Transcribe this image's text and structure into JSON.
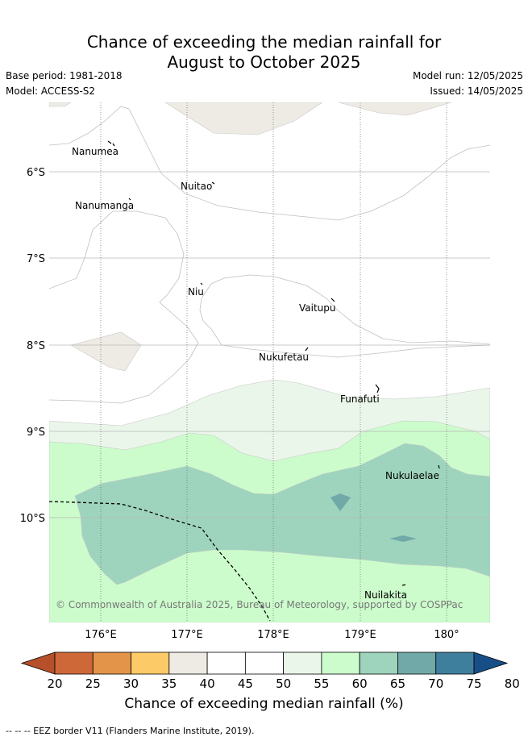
{
  "title_line1": "Chance of exceeding the median rainfall for",
  "title_line2": "August to October 2025",
  "base_period": "Base period: 1981-2018",
  "model": "Model: ACCESS-S2",
  "model_run": "Model run: 12/05/2025",
  "issued": "Issued: 14/05/2025",
  "lat_labels": [
    "6°S",
    "7°S",
    "8°S",
    "9°S",
    "10°S"
  ],
  "lon_labels": [
    "176°E",
    "177°E",
    "178°E",
    "179°E",
    "180°"
  ],
  "places": [
    "Nanumea",
    "Nuitao",
    "Nanumanga",
    "Niu",
    "Vaitupu",
    "Nukufetau",
    "Funafuti",
    "Nukulaelae",
    "Nuilakita"
  ],
  "copyright": "© Commonwealth of Australia 2025, Bureau of Meteorology, supported by COSPPac",
  "colorbar": {
    "ticks": [
      "20",
      "25",
      "30",
      "35",
      "40",
      "45",
      "50",
      "55",
      "60",
      "65",
      "70",
      "75",
      "80"
    ],
    "colors": [
      "#b5502a",
      "#ce6838",
      "#e39449",
      "#fcca66",
      "#eeebe5",
      "#ffffff",
      "#ffffff",
      "#eaf6ea",
      "#ccfccc",
      "#9ed4bd",
      "#71a9a9",
      "#3f7f9e",
      "#174e87"
    ],
    "label": "Chance of exceeding median rainfall (%)"
  },
  "legend_eez": "-- -- -- EEZ border V11 (Flanders Marine Institute, 2019)."
}
